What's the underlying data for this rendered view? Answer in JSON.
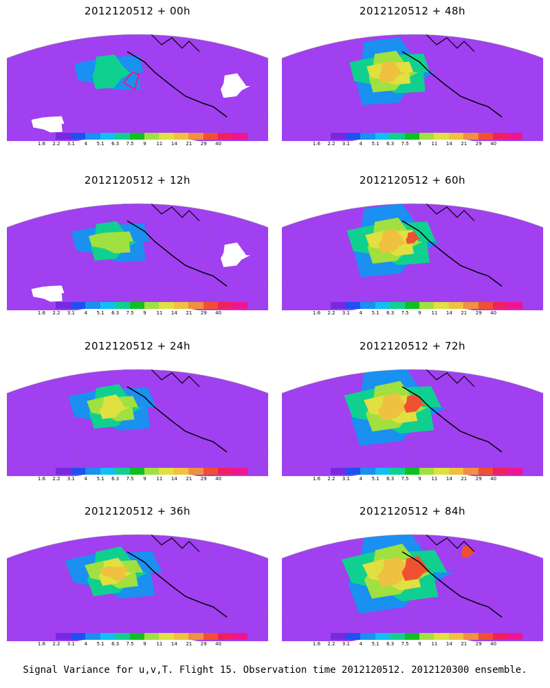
{
  "panels": [
    {
      "title": "2012120512 + 00h",
      "level": 0
    },
    {
      "title": "2012120512 + 48h",
      "level": 4
    },
    {
      "title": "2012120512 + 12h",
      "level": 1
    },
    {
      "title": "2012120512 + 60h",
      "level": 5
    },
    {
      "title": "2012120512 + 24h",
      "level": 2
    },
    {
      "title": "2012120512 + 72h",
      "level": 6
    },
    {
      "title": "2012120512 + 36h",
      "level": 3
    },
    {
      "title": "2012120512 + 84h",
      "level": 7
    }
  ],
  "colorbar": {
    "labels": [
      "1.6",
      "2.2",
      "3.1",
      "4",
      "5.1",
      "6.3",
      "7.5",
      "9",
      "11",
      "14",
      "21",
      "29",
      "40"
    ],
    "colors": [
      "#a040f0",
      "#7a28e0",
      "#2050f0",
      "#1a90f0",
      "#10c0f0",
      "#10d090",
      "#10c020",
      "#a0e040",
      "#e0e040",
      "#f0c040",
      "#f09040",
      "#f05030",
      "#f02060",
      "#f01490"
    ]
  },
  "caption": "Signal Variance for u,v,T. Flight 15. Observation time 2012120512. 2012120300 ensemble."
}
